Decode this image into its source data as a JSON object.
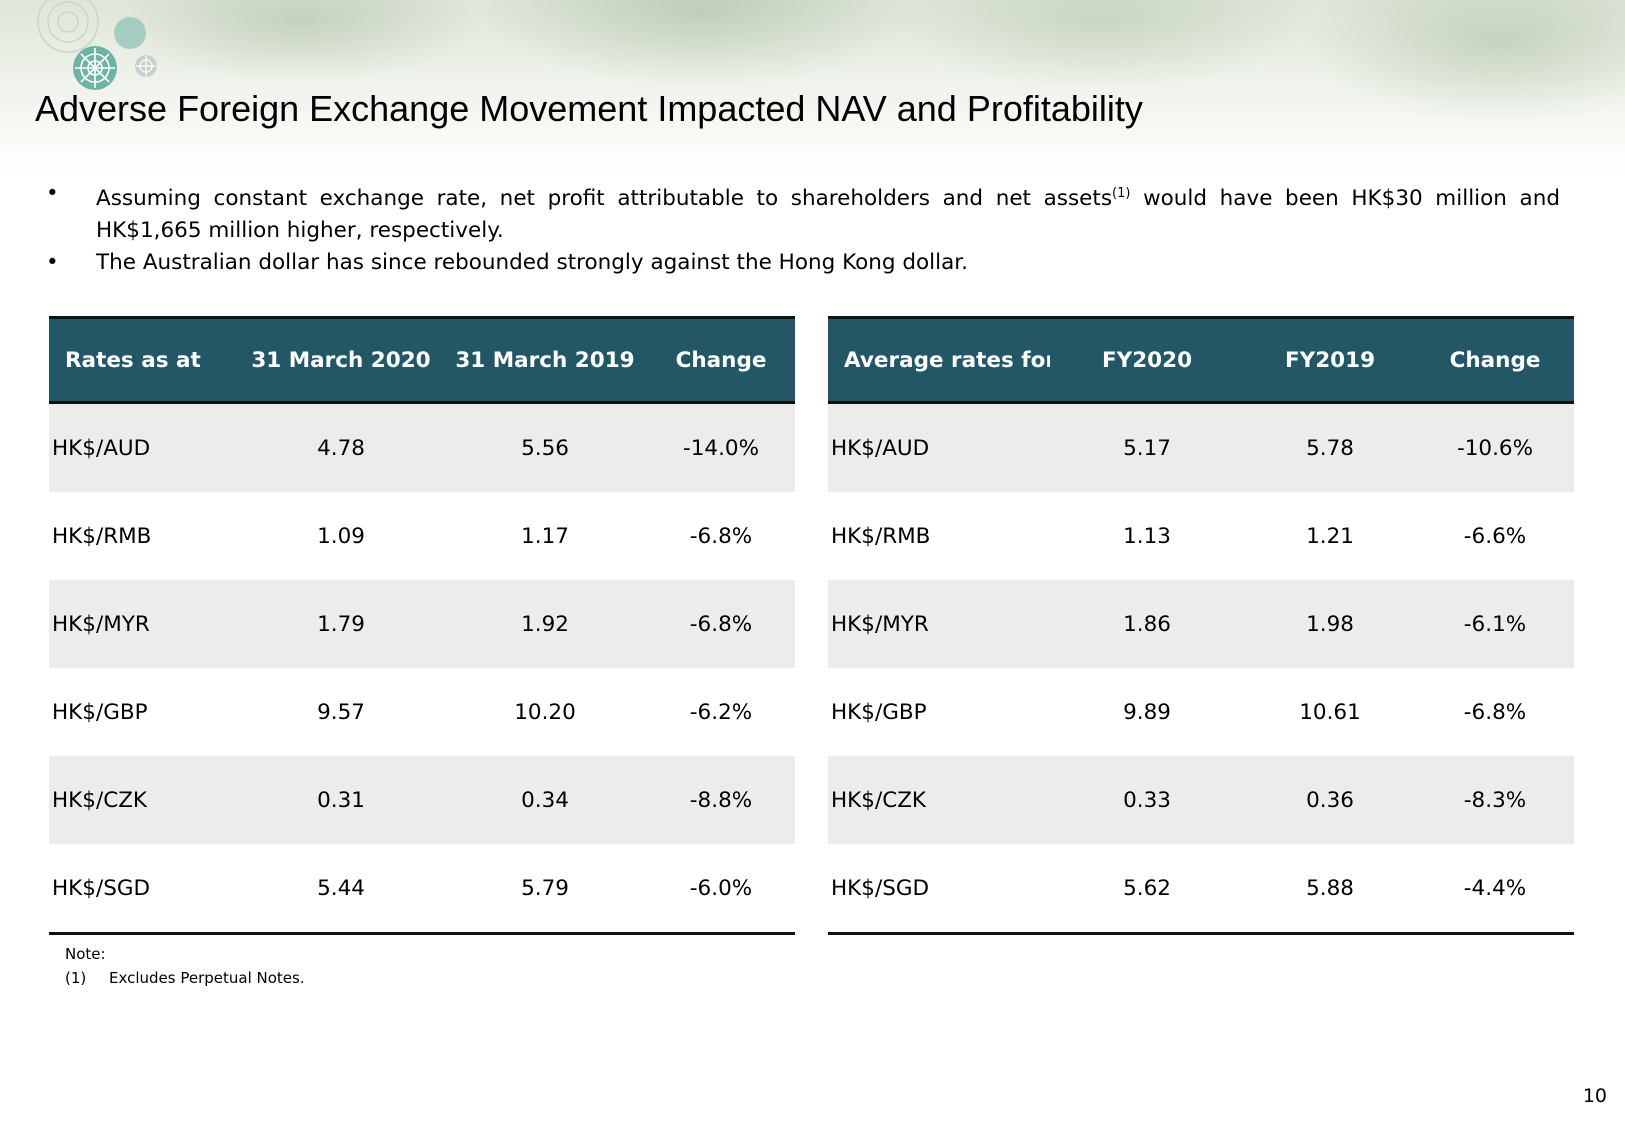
{
  "title": "Adverse Foreign Exchange Movement Impacted NAV and Profitability",
  "bullets": [
    {
      "text_before": "Assuming constant exchange rate, net profit attributable to shareholders and net assets",
      "superscript": "(1)",
      "text_after": " would have been HK$30 million and HK$1,665 million higher, respectively."
    },
    {
      "text": "The Australian dollar has since rebounded strongly against the Hong Kong dollar."
    }
  ],
  "bullet_symbol": "•",
  "table_left": {
    "headers": [
      "Rates as at",
      "31 March 2020",
      "31 March 2019",
      "Change"
    ],
    "rows": [
      [
        "HK$/AUD",
        "4.78",
        "5.56",
        "-14.0%"
      ],
      [
        "HK$/RMB",
        "1.09",
        "1.17",
        "-6.8%"
      ],
      [
        "HK$/MYR",
        "1.79",
        "1.92",
        "-6.8%"
      ],
      [
        "HK$/GBP",
        "9.57",
        "10.20",
        "-6.2%"
      ],
      [
        "HK$/CZK",
        "0.31",
        "0.34",
        "-8.8%"
      ],
      [
        "HK$/SGD",
        "5.44",
        "5.79",
        "-6.0%"
      ]
    ]
  },
  "table_right": {
    "headers": [
      "Average rates for",
      "FY2020",
      "FY2019",
      "Change"
    ],
    "rows": [
      [
        "HK$/AUD",
        "5.17",
        "5.78",
        "-10.6%"
      ],
      [
        "HK$/RMB",
        "1.13",
        "1.21",
        "-6.6%"
      ],
      [
        "HK$/MYR",
        "1.86",
        "1.98",
        "-6.1%"
      ],
      [
        "HK$/GBP",
        "9.89",
        "10.61",
        "-6.8%"
      ],
      [
        "HK$/CZK",
        "0.33",
        "0.36",
        "-8.3%"
      ],
      [
        "HK$/SGD",
        "5.62",
        "5.88",
        "-4.4%"
      ]
    ]
  },
  "note": {
    "heading": "Note:",
    "items": [
      {
        "number": "(1)",
        "text": "Excludes Perpetual Notes."
      }
    ]
  },
  "page_number": "10",
  "colors": {
    "table_header": "#235765",
    "row_shade": "#ececec"
  }
}
